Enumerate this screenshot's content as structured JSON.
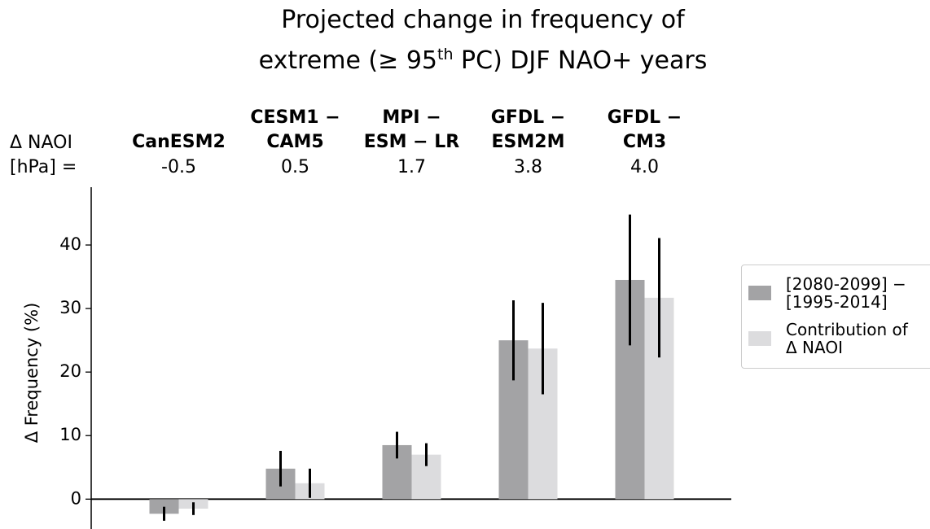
{
  "chart_data": {
    "type": "bar",
    "title": [
      "Projected change in frequency of",
      "extreme (≥ 95",
      "th",
      " PC) DJF NAO+ years"
    ],
    "header_label": "Δ NAOI\n[hPa] =",
    "categories": [
      "CanESM2",
      "CESM1 −\nCAM5",
      "MPI −\nESM − LR",
      "GFDL −\nESM2M",
      "GFDL −\nCM3"
    ],
    "naoi_labels": [
      "-0.5",
      "0.5",
      "1.7",
      "3.8",
      "4.0"
    ],
    "y_label": "Δ Frequency (%)",
    "series": [
      {
        "name": "[2080-2099] −\n[1995-2014]",
        "color": "#a3a3a5",
        "values": [
          -2.3,
          4.8,
          8.5,
          25.0,
          34.5
        ],
        "errors": [
          1.1,
          2.8,
          2.1,
          6.3,
          10.3
        ]
      },
      {
        "name": "Contribution of\nΔ NAOI",
        "color": "#dcdcde",
        "values": [
          -1.5,
          2.5,
          7.0,
          23.7,
          31.7
        ],
        "errors": [
          1.0,
          2.3,
          1.8,
          7.2,
          9.4
        ]
      }
    ],
    "ylim": [
      -4.7,
      49.1
    ],
    "yticks": [
      0,
      10,
      20,
      30,
      40
    ],
    "grid": false,
    "legend": "right"
  }
}
